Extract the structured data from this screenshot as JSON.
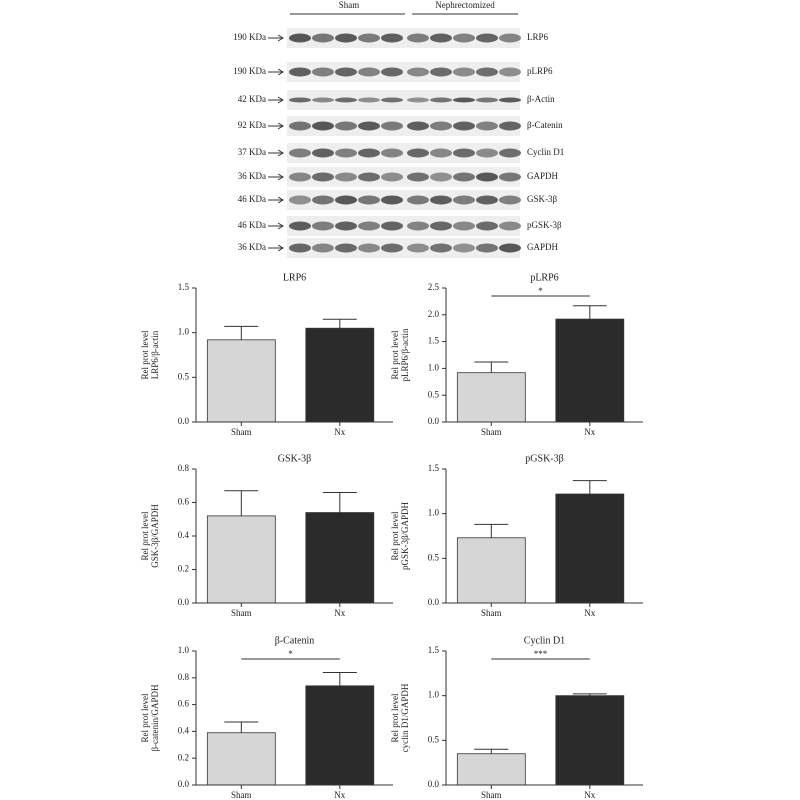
{
  "blot": {
    "groups": [
      "Sham",
      "Nephrectomized"
    ],
    "rows": [
      {
        "size": "190 KDa",
        "label": "LRP6"
      },
      {
        "size": "190 KDa",
        "label": "pLRP6"
      },
      {
        "size": "42 KDa",
        "label": "β-Actin"
      },
      {
        "size": "92 KDa",
        "label": "β-Catenin"
      },
      {
        "size": "37 KDa",
        "label": "Cyclin D1"
      },
      {
        "size": "36 KDa",
        "label": "GAPDH"
      },
      {
        "size": "46 KDa",
        "label": "GSK-3β"
      },
      {
        "size": "46 KDa",
        "label": "pGSK-3β"
      },
      {
        "size": "36 KDa",
        "label": "GAPDH"
      }
    ]
  },
  "chart_data": [
    {
      "type": "bar",
      "title": "LRP6",
      "ylabel": [
        "Rel prot level",
        "LRP6/β-actin"
      ],
      "categories": [
        "Sham",
        "Nx"
      ],
      "values": [
        0.92,
        1.05
      ],
      "errors": [
        0.15,
        0.1
      ],
      "colors": [
        "#d6d6d6",
        "#2b2b2b"
      ],
      "ylim": [
        0,
        1.5
      ],
      "yticks": [
        {
          "value": 0,
          "label": "0.0"
        },
        0.5,
        {
          "value": 1,
          "label": "1.0"
        },
        1.5
      ]
    },
    {
      "type": "bar",
      "title": "pLRP6",
      "ylabel": [
        "Rel prot level",
        "pLRP6/β-actin"
      ],
      "categories": [
        "Sham",
        "Nx"
      ],
      "values": [
        0.92,
        1.92
      ],
      "errors": [
        0.2,
        0.25
      ],
      "colors": [
        "#d6d6d6",
        "#2b2b2b"
      ],
      "ylim": [
        0,
        2.5
      ],
      "yticks": [
        {
          "value": 0,
          "label": "0.0"
        },
        0.5,
        {
          "value": 1,
          "label": "1.0"
        },
        1.5,
        {
          "value": 2,
          "label": "2.0"
        },
        2.5
      ],
      "significance": "*"
    },
    {
      "type": "bar",
      "title": "GSK-3β",
      "ylabel": [
        "Rel prot level",
        "GSK-3β/GAPDH"
      ],
      "categories": [
        "Sham",
        "Nx"
      ],
      "values": [
        0.52,
        0.54
      ],
      "errors": [
        0.15,
        0.12
      ],
      "colors": [
        "#d6d6d6",
        "#2b2b2b"
      ],
      "ylim": [
        0,
        0.8
      ],
      "yticks": [
        {
          "value": 0,
          "label": "0.0"
        },
        0.2,
        0.4,
        0.6,
        0.8
      ]
    },
    {
      "type": "bar",
      "title": "pGSK-3β",
      "ylabel": [
        "Rel prot level",
        "pGSK-3β/GAPDH"
      ],
      "categories": [
        "Sham",
        "Nx"
      ],
      "values": [
        0.73,
        1.22
      ],
      "errors": [
        0.15,
        0.15
      ],
      "colors": [
        "#d6d6d6",
        "#2b2b2b"
      ],
      "ylim": [
        0,
        1.5
      ],
      "yticks": [
        {
          "value": 0,
          "label": "0.0"
        },
        0.5,
        {
          "value": 1,
          "label": "1.0"
        },
        1.5
      ]
    },
    {
      "type": "bar",
      "title": "β-Catenin",
      "ylabel": [
        "Rel prot level",
        "β-catenin/GAPDH"
      ],
      "categories": [
        "Sham",
        "Nx"
      ],
      "values": [
        0.39,
        0.74
      ],
      "errors": [
        0.08,
        0.1
      ],
      "colors": [
        "#d6d6d6",
        "#2b2b2b"
      ],
      "ylim": [
        0,
        1
      ],
      "yticks": [
        {
          "value": 0,
          "label": "0.0"
        },
        0.2,
        0.4,
        0.6,
        0.8,
        {
          "value": 1,
          "label": "1.0"
        }
      ],
      "significance": "*"
    },
    {
      "type": "bar",
      "title": "Cyclin D1",
      "ylabel": [
        "Rel prot level",
        "cyclin D1/GAPDH"
      ],
      "categories": [
        "Sham",
        "Nx"
      ],
      "values": [
        0.35,
        1.0
      ],
      "errors": [
        0.05,
        0.02
      ],
      "colors": [
        "#d6d6d6",
        "#2b2b2b"
      ],
      "ylim": [
        0,
        1.5
      ],
      "yticks": [
        {
          "value": 0,
          "label": "0.0"
        },
        0.5,
        {
          "value": 1,
          "label": "1.0"
        },
        1.5
      ],
      "significance": "***"
    }
  ]
}
